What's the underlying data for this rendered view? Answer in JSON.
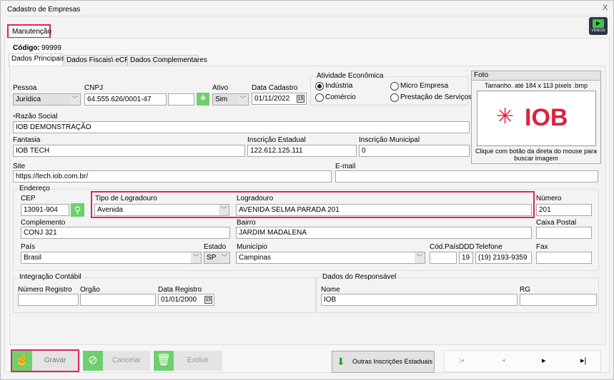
{
  "window": {
    "title": "Cadastro de Empresas",
    "close": "X"
  },
  "top_tab": "Manutenção",
  "videos_label": "VÍDEOS",
  "codigo": {
    "label": "Código:",
    "value": "99999"
  },
  "tabs": [
    "Dados Principais",
    "Dados Fiscais\\ eCRM",
    "Dados Complementares"
  ],
  "pessoa": {
    "label": "Pessoa",
    "value": "Jurídica"
  },
  "cnpj": {
    "label": "CNPJ",
    "value": "64.555.626/0001-47",
    "extra": ""
  },
  "ativo": {
    "label": "Ativo",
    "value": "Sim"
  },
  "data_cadastro": {
    "label": "Data Cadastro",
    "value": "01/11/2022"
  },
  "atividade": {
    "label": "Atividade Econômica",
    "options": [
      "Indústria",
      "Micro Empresa",
      "Comércio",
      "Prestação de Serviços"
    ],
    "selected": "Indústria"
  },
  "foto": {
    "label": "Foto",
    "size_hint": "Tamanho. até 184 x 113 pixels  .bmp",
    "logo_text": "IOB",
    "caption": "Clique com botão da direta do mouse para buscar imagem"
  },
  "razao_social": {
    "label": "Razão Social",
    "value": "IOB DEMONSTRAÇÃO"
  },
  "fantasia": {
    "label": "Fantasia",
    "value": "IOB TECH"
  },
  "inscricao_estadual": {
    "label": "Inscrição Estadual",
    "value": "122.612.125.111"
  },
  "inscricao_municipal": {
    "label": "Inscrição Municipal",
    "value": "0"
  },
  "site": {
    "label": "Site",
    "value": "https://tech.iob.com.br/"
  },
  "email": {
    "label": "E-mail",
    "value": ""
  },
  "endereco": {
    "label": "Endereço",
    "cep": {
      "label": "CEP",
      "value": "13091-904"
    },
    "tipo_logradouro": {
      "label": "Tipo de Logradouro",
      "value": "Avenida"
    },
    "logradouro": {
      "label": "Logradouro",
      "value": "AVENIDA SELMA PARADA 201"
    },
    "numero": {
      "label": "Número",
      "value": "201"
    },
    "complemento": {
      "label": "Complemento",
      "value": "CONJ  321"
    },
    "bairro": {
      "label": "Bairro",
      "value": "JARDIM MADALENA"
    },
    "caixa_postal": {
      "label": "Caixa Postal",
      "value": ""
    },
    "pais": {
      "label": "País",
      "value": "Brasil"
    },
    "estado": {
      "label": "Estado",
      "value": "SP"
    },
    "municipio": {
      "label": "Município",
      "value": "Campinas"
    },
    "cod_pais": {
      "label": "Cód.País",
      "value": ""
    },
    "ddd": {
      "label": "DDD",
      "value": "19"
    },
    "telefone": {
      "label": "Telefone",
      "value": "(19) 2193-9359"
    },
    "fax": {
      "label": "Fax",
      "value": ""
    }
  },
  "integracao": {
    "label": "Integração Contábil",
    "numero_registro": {
      "label": "Número Registro",
      "value": ""
    },
    "orgao": {
      "label": "Orgão",
      "value": ""
    },
    "data_registro": {
      "label": "Data Registro",
      "value": "01/01/2000"
    }
  },
  "responsavel": {
    "label": "Dados do Responsável",
    "nome": {
      "label": "Nome",
      "value": "IOB"
    },
    "rg": {
      "label": "RG",
      "value": ""
    }
  },
  "buttons": {
    "gravar": "Gravar",
    "cancelar": "Cancelar",
    "excluir": "Excluir",
    "outras": "Outras Inscrições Estaduais"
  },
  "nav": {
    "first": "|◂",
    "prev": "◂",
    "next": "▸",
    "last": "▸|"
  },
  "calendar_glyph": "15",
  "colors": {
    "accent": "#e0245e",
    "green": "#6dd06d",
    "logo": "#e0203c"
  }
}
